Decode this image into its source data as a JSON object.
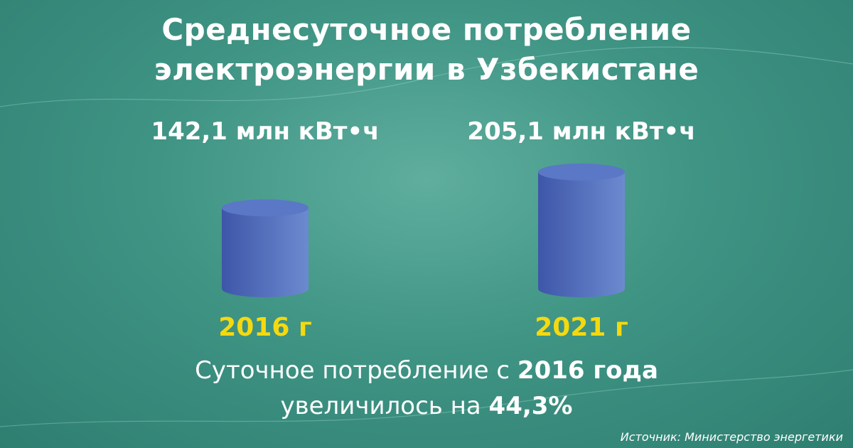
{
  "title_line1": "Среднесуточное потребление",
  "title_line2": "электроэнергии в Узбекистане",
  "note": {
    "line1_prefix": "Суточное потребление с ",
    "line1_bold": "2016 года",
    "line2_prefix": "увеличилось на ",
    "line2_bold": "44,3%"
  },
  "source": "Источник: Министерство энергетики",
  "colors": {
    "label": "#f5d90f",
    "cylinder_dark": "#3e56a8",
    "cylinder_light": "#6c8ad0",
    "cylinder_top": "#5a78c6"
  },
  "chart_data": {
    "type": "bar",
    "categories": [
      "2016 г",
      "2021 г"
    ],
    "values": [
      142.1,
      205.1
    ],
    "value_labels": [
      "142,1 млн кВт•ч",
      "205,1 млн кВт•ч"
    ],
    "unit": "млн кВт•ч"
  }
}
